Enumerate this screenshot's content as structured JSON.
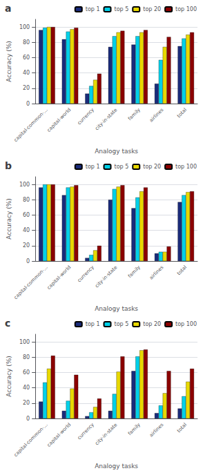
{
  "chart_data": [
    {
      "type": "bar",
      "title": "a",
      "categories": [
        "capital-common-...",
        "capital-world",
        "currency",
        "city-in-state",
        "family",
        "airlines",
        "total"
      ],
      "xlabel": "Analogy tasks",
      "ylabel": "Accuracy (%)",
      "ylim": [
        0,
        110
      ],
      "yticks": [
        0,
        20,
        40,
        60,
        80,
        100
      ],
      "grid": true,
      "legend": "upper right",
      "series": [
        {
          "name": "top 1",
          "color": "#1a2b7a",
          "values": [
            96,
            84,
            13,
            74,
            77,
            26,
            75
          ]
        },
        {
          "name": "top 5",
          "color": "#00d0e8",
          "values": [
            99,
            94,
            23,
            88,
            88,
            57,
            85
          ]
        },
        {
          "name": "top 20",
          "color": "#e8d800",
          "values": [
            100,
            97,
            31,
            93,
            93,
            74,
            90
          ]
        },
        {
          "name": "top 100",
          "color": "#8b0000",
          "values": [
            100,
            99,
            39,
            95,
            96,
            87,
            93
          ]
        }
      ]
    },
    {
      "type": "bar",
      "title": "b",
      "categories": [
        "capital-common-...",
        "capital-world",
        "currency",
        "city-in-state",
        "family",
        "airlines",
        "total"
      ],
      "xlabel": "Analogy tasks",
      "ylabel": "Accuracy (%)",
      "ylim": [
        0,
        110
      ],
      "yticks": [
        0,
        20,
        40,
        60,
        80,
        100
      ],
      "grid": true,
      "legend": "upper right",
      "series": [
        {
          "name": "top 1",
          "color": "#1a2b7a",
          "values": [
            96,
            86,
            4,
            80,
            69,
            10,
            77
          ]
        },
        {
          "name": "top 5",
          "color": "#00d0e8",
          "values": [
            100,
            96,
            8,
            94,
            83,
            12,
            86
          ]
        },
        {
          "name": "top 20",
          "color": "#e8d800",
          "values": [
            100,
            97,
            14,
            97,
            91,
            12,
            90
          ]
        },
        {
          "name": "top 100",
          "color": "#8b0000",
          "values": [
            100,
            99,
            20,
            99,
            96,
            19,
            91
          ]
        }
      ]
    },
    {
      "type": "bar",
      "title": "c",
      "categories": [
        "capital-common-...",
        "capital-world",
        "currency",
        "city-in-state",
        "family",
        "airlines",
        "total"
      ],
      "xlabel": "Analogy tasks",
      "ylabel": "Accuracy (%)",
      "ylim": [
        0,
        110
      ],
      "yticks": [
        0,
        20,
        40,
        60,
        80,
        100
      ],
      "grid": true,
      "legend": "upper right",
      "series": [
        {
          "name": "top 1",
          "color": "#1a2b7a",
          "values": [
            22,
            10,
            3,
            10,
            62,
            7,
            13
          ]
        },
        {
          "name": "top 5",
          "color": "#00d0e8",
          "values": [
            47,
            23,
            8,
            32,
            81,
            17,
            29
          ]
        },
        {
          "name": "top 20",
          "color": "#e8d800",
          "values": [
            65,
            39,
            15,
            61,
            89,
            33,
            48
          ]
        },
        {
          "name": "top 100",
          "color": "#8b0000",
          "values": [
            82,
            57,
            26,
            81,
            90,
            62,
            65
          ]
        }
      ]
    }
  ]
}
